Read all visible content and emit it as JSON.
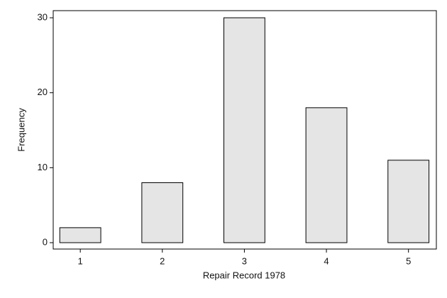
{
  "chart_data": {
    "type": "bar",
    "x": [
      1,
      2,
      3,
      4,
      5
    ],
    "values": [
      2,
      8,
      30,
      18,
      11
    ],
    "color": "#e5e5e5",
    "edgecolor": "#000000",
    "xlabel": "Repair Record 1978",
    "ylabel": "Frequency",
    "xlim": [
      0.67,
      5.34
    ],
    "ylim": [
      -0.85,
      30.95
    ],
    "xticks": [
      1,
      2,
      3,
      4,
      5
    ],
    "yticks": [
      0,
      10,
      20,
      30
    ],
    "grid": false
  }
}
